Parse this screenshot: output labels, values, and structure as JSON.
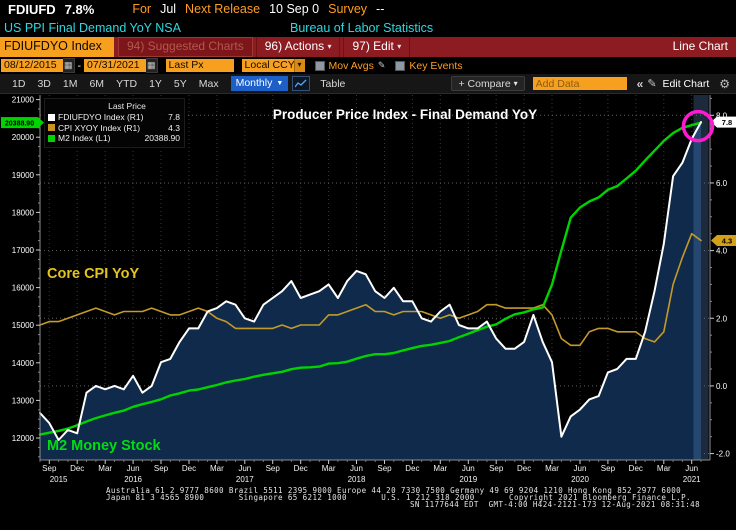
{
  "icons": {
    "caret_down_small": "▾",
    "caret_down_solid": "▼",
    "calendar": "▦",
    "pencil": "✎",
    "gear": "⚙",
    "chevrons_left": "«",
    "checkbox": ""
  },
  "header": {
    "line1": [
      {
        "text": "FDIUFD",
        "color": "#ffffff",
        "bold": true
      },
      {
        "text": "7.8%",
        "color": "#ffffff",
        "bold": true,
        "gap": 38
      },
      {
        "text": "For",
        "color": "#ff9d23"
      },
      {
        "text": "Jul",
        "color": "#ffffff"
      },
      {
        "text": "Next Release",
        "color": "#ff9d23"
      },
      {
        "text": "10 Sep 0",
        "color": "#ffffff"
      },
      {
        "text": "Survey",
        "color": "#ff9d23"
      },
      {
        "text": "--",
        "color": "#ffffff"
      }
    ],
    "line2_left": "US PPI Final Demand YoY NSA",
    "line2_right": "Bureau of Labor Statistics"
  },
  "ribbon": {
    "security_tab": "FDIUFDYO Index",
    "suggested_charts": "94) Suggested Charts",
    "actions": "96) Actions",
    "edit": "97) Edit",
    "view_label": "Line Chart"
  },
  "controls": {
    "date_from": "08/12/2015",
    "date_separator": "-",
    "date_to": "07/31/2021",
    "field": "Last Px",
    "currency": "Local CCY",
    "mov_avgs": "Mov Avgs",
    "key_events": "Key Events"
  },
  "toolbar": {
    "ranges": [
      "1D",
      "3D",
      "1M",
      "6M",
      "YTD",
      "1Y",
      "5Y",
      "Max"
    ],
    "period": "Monthly",
    "table": "Table",
    "compare": "+ Compare",
    "add_data_placeholder": "Add Data",
    "edit_chart": "Edit Chart"
  },
  "legend": {
    "header": "Last Price",
    "items": [
      {
        "label": "FDIUFDYO Index  (R1)",
        "value": "7.8",
        "color": "#ffffff"
      },
      {
        "label": "CPI XYOY Index  (R1)",
        "value": "4.3",
        "color": "#c9931f"
      },
      {
        "label": "M2 Index  (L1)",
        "value": "20388.90",
        "color": "#00d300"
      }
    ]
  },
  "chart_data": {
    "type": "line",
    "title": "Producer Price Index - Final Demand YoY",
    "annotations": {
      "cpi_label": "Core CPI YoY",
      "m2_label": "M2 Money Stock"
    },
    "x_axis": {
      "interval": "monthly",
      "start": "Aug 2015",
      "end": "Jul 2021",
      "quarter_labels": [
        "Sep",
        "Dec",
        "Mar",
        "Jun",
        "Sep",
        "Dec",
        "Mar",
        "Jun",
        "Sep",
        "Dec",
        "Mar",
        "Jun",
        "Sep",
        "Dec",
        "Mar",
        "Jun",
        "Sep",
        "Dec",
        "Mar",
        "Jun",
        "Sep",
        "Dec",
        "Mar",
        "Jun"
      ],
      "years": [
        {
          "label": "2015",
          "month_index": 2
        },
        {
          "label": "2016",
          "month_index": 10
        },
        {
          "label": "2017",
          "month_index": 22
        },
        {
          "label": "2018",
          "month_index": 34
        },
        {
          "label": "2019",
          "month_index": 46
        },
        {
          "label": "2020",
          "month_index": 58
        },
        {
          "label": "2021",
          "month_index": 70
        }
      ]
    },
    "right_axis": {
      "label_ticks": [
        8.0,
        6.0,
        4.0,
        2.0,
        0.0,
        -2.0
      ],
      "range_top": 8.6,
      "range_bottom": -2.19,
      "minor_step": 0.5
    },
    "left_axis": {
      "label_ticks": [
        21000,
        20000,
        19000,
        18000,
        17000,
        16000,
        15000,
        14000,
        13000,
        12000
      ],
      "range_top": 21122,
      "range_bottom": 11415,
      "minor_step": 250
    },
    "series": [
      {
        "name": "FDIUFDYO Index",
        "data_name": "ppi-line",
        "axis": "right",
        "color": "#ffffff",
        "width": 2,
        "area_fill": "#0f2a4a",
        "last": 7.8,
        "tag": {
          "text": "7.8",
          "bg": "#ffffff"
        },
        "values": [
          -0.8,
          -1.1,
          -1.6,
          -1.3,
          -1.4,
          -0.2,
          0.0,
          -0.1,
          0.0,
          -0.1,
          0.3,
          -0.2,
          0.0,
          0.7,
          0.8,
          1.3,
          1.7,
          1.7,
          2.2,
          2.3,
          2.5,
          2.4,
          2.0,
          1.9,
          2.4,
          2.6,
          2.8,
          3.1,
          2.6,
          2.7,
          2.8,
          3.0,
          2.6,
          3.1,
          3.4,
          3.3,
          2.8,
          2.6,
          2.9,
          2.5,
          2.5,
          2.0,
          1.9,
          2.2,
          2.4,
          1.8,
          1.7,
          1.7,
          1.9,
          1.4,
          1.1,
          1.1,
          1.3,
          2.1,
          1.3,
          0.7,
          -1.5,
          -0.9,
          -0.7,
          -0.4,
          -0.3,
          0.4,
          0.5,
          0.8,
          0.8,
          1.6,
          2.8,
          4.2,
          6.2,
          6.6,
          7.3,
          7.8
        ]
      },
      {
        "name": "CPI XYOY Index",
        "data_name": "cpi-line",
        "axis": "right",
        "color": "#c49a28",
        "width": 1.6,
        "last": 4.3,
        "tag": {
          "text": "4.3",
          "bg": "#d4a017"
        },
        "values": [
          1.8,
          1.9,
          1.9,
          2.0,
          2.1,
          2.2,
          2.3,
          2.2,
          2.1,
          2.2,
          2.2,
          2.2,
          2.3,
          2.2,
          2.1,
          2.1,
          2.2,
          2.3,
          2.2,
          2.0,
          1.9,
          1.7,
          1.7,
          1.7,
          1.7,
          1.7,
          1.8,
          1.7,
          1.8,
          1.8,
          1.8,
          2.1,
          2.1,
          2.2,
          2.3,
          2.4,
          2.2,
          2.2,
          2.1,
          2.2,
          2.2,
          2.2,
          2.1,
          2.0,
          2.1,
          2.0,
          2.1,
          2.2,
          2.4,
          2.4,
          2.3,
          2.3,
          2.3,
          2.3,
          2.4,
          2.1,
          1.4,
          1.2,
          1.2,
          1.6,
          1.7,
          1.7,
          1.6,
          1.6,
          1.6,
          1.4,
          1.3,
          1.6,
          3.0,
          3.8,
          4.5,
          4.3
        ]
      },
      {
        "name": "M2 Index",
        "data_name": "m2-line",
        "axis": "left",
        "color": "#00d300",
        "width": 2.4,
        "last": 20388.9,
        "tag": {
          "text": "20388.90",
          "bg": "#00d300"
        },
        "values": [
          12090,
          12140,
          12190,
          12250,
          12340,
          12440,
          12530,
          12600,
          12670,
          12730,
          12830,
          12900,
          12960,
          13030,
          13130,
          13190,
          13260,
          13290,
          13350,
          13410,
          13480,
          13530,
          13570,
          13630,
          13680,
          13720,
          13760,
          13830,
          13870,
          13880,
          13900,
          13980,
          13990,
          14030,
          14110,
          14180,
          14230,
          14230,
          14260,
          14330,
          14390,
          14450,
          14480,
          14530,
          14580,
          14680,
          14770,
          14870,
          14960,
          15020,
          15170,
          15290,
          15340,
          15420,
          15470,
          16080,
          16990,
          17860,
          18130,
          18290,
          18400,
          18600,
          18700,
          18900,
          19110,
          19380,
          19640,
          19900,
          20110,
          20250,
          20320,
          20388.9
        ]
      }
    ],
    "highlight_column": {
      "month_index": 71,
      "width": 15
    },
    "circle_annotation": {
      "month_index": 71,
      "value": 7.8,
      "color": "#ff1ad1"
    }
  },
  "footer": {
    "line1": "Australia 61 2 9777 8600 Brazil 5511 2395 9000 Europe 44 20 7330 7500 Germany 49 69 9204 1210 Hong Kong 852 2977 6000",
    "line2": "Japan 81 3 4565 8900       Singapore 65 6212 1000       U.S. 1 212 318 2000       Copyright 2021 Bloomberg Finance L.P.",
    "line3": "SN 1177644 EDT  GMT-4:00 H424-2121-173 12-Aug-2021 08:31:48"
  }
}
